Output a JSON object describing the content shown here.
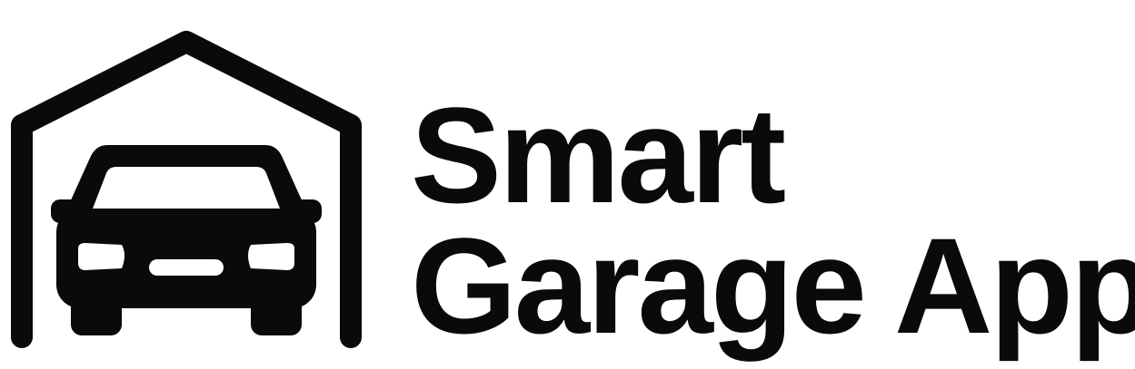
{
  "brand": {
    "line1": "Smart",
    "line2": "Garage App",
    "color": "#0a0a0a",
    "background": "#ffffff"
  },
  "icon": {
    "name": "garage-car-icon"
  }
}
